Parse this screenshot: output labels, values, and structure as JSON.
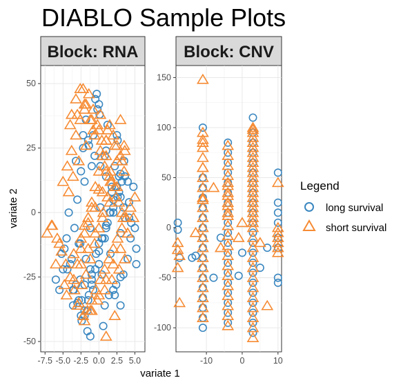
{
  "chart_data": {
    "type": "scatter",
    "title": "DIABLO Sample Plots",
    "xlabel": "variate 1",
    "ylabel": "variate 2",
    "grid": true,
    "legend": {
      "title": "Legend",
      "placement": "right",
      "entries": [
        {
          "label": "long survival",
          "shape": "circle",
          "color": "#3A87C0"
        },
        {
          "label": "short survival",
          "shape": "triangle",
          "color": "#F68B33"
        }
      ]
    },
    "panels": [
      {
        "strip": "Block: RNA",
        "xlim": [
          -8.1,
          6.4
        ],
        "ylim": [
          -54,
          57
        ],
        "xticks": [
          -7.5,
          -5.0,
          -2.5,
          0.0,
          2.5,
          5.0
        ],
        "xtick_labels": [
          "-7.5",
          "-5.0",
          "-2.5",
          "0.0",
          "2.5",
          "5.0"
        ],
        "yticks": [
          -50,
          -25,
          0,
          25,
          50
        ],
        "ytick_labels": [
          "-50",
          "-25",
          "0",
          "25",
          "50"
        ],
        "series": [
          {
            "name": "long survival",
            "color": "#3A87C0",
            "shape": "circle",
            "x": [
              -3.5,
              -3,
              -2.5,
              -2,
              -1.5,
              -1,
              -0.5,
              0,
              0.5,
              1,
              1.5,
              2,
              2.5,
              3,
              -4,
              -2.8,
              -1.2,
              0.2,
              1.8,
              2.8,
              -3.2,
              -2.2,
              -0.8,
              0.8,
              2.2,
              3.2,
              -1.8,
              -0.2,
              1.2,
              2.6,
              -3.8,
              -2.6,
              -1.4,
              0.4,
              1.6,
              3,
              3.6,
              4.2,
              4.8,
              5.2,
              -4.5,
              -4.8,
              -5,
              -5.5,
              -6,
              -3.6,
              -2.4,
              -1.6,
              0.6,
              1.4,
              2.4,
              3.4,
              4,
              -0.5,
              0,
              -1.2,
              -2,
              0.8,
              2,
              3,
              -3,
              -2,
              -1,
              1,
              2.5,
              3.5,
              -4.2,
              -3.4,
              -2.6,
              -1.8,
              -1,
              0,
              1,
              2,
              3,
              4,
              -2.2,
              -1.4,
              -0.6,
              0.2,
              1,
              1.8,
              2.6,
              3.4,
              4.2,
              5,
              -3.2,
              -2.4,
              -1.6,
              -0.8,
              0,
              0.8,
              1.6,
              2.4,
              -0.3,
              0.1,
              -1.5,
              -2.5,
              3,
              4.5,
              -5.2,
              -4.4,
              -3.6,
              -2.8,
              -2,
              -1.2,
              -0.4,
              0.4,
              1.2,
              2,
              2.8,
              3.6,
              4.4,
              5.2,
              -1,
              2.2
            ],
            "y": [
              -30,
              -35,
              -40,
              -38,
              -34,
              -28,
              -22,
              -15,
              -10,
              -5,
              0,
              5,
              10,
              15,
              -20,
              -12,
              -6,
              2,
              8,
              14,
              20,
              25,
              30,
              22,
              18,
              12,
              36,
              40,
              34,
              28,
              -18,
              -26,
              -32,
              -24,
              -16,
              -8,
              -2,
              4,
              10,
              -20,
              -10,
              -14,
              -22,
              -30,
              -26,
              -36,
              -42,
              -46,
              -44,
              -32,
              -28,
              -24,
              -18,
              44,
              42,
              -48,
              -40,
              -36,
              -30,
              -25,
              5,
              12,
              18,
              24,
              30,
              20,
              0,
              -6,
              -12,
              -18,
              -24,
              -12,
              -6,
              0,
              6,
              12,
              30,
              26,
              22,
              18,
              14,
              10,
              6,
              2,
              -2,
              -6,
              -28,
              -34,
              -38,
              -30,
              -20,
              -10,
              0,
              10,
              46,
              38,
              28,
              16,
              -36,
              -4,
              -16,
              -22,
              -30,
              -34,
              -28,
              -22,
              -16,
              -10,
              -4,
              2,
              8,
              14,
              -10,
              -14,
              -26,
              -32
            ]
          },
          {
            "name": "short survival",
            "color": "#F68B33",
            "shape": "triangle",
            "x": [
              -6.5,
              -5.8,
              -5.2,
              -4.6,
              -4,
              -3.4,
              -2.8,
              -2.2,
              -1.6,
              -1,
              -0.4,
              0.2,
              0.8,
              1.4,
              2,
              2.6,
              3.2,
              3.8,
              4.4,
              5,
              -5,
              -4.4,
              -3.8,
              -3.2,
              -2.6,
              -2,
              -1.4,
              -0.8,
              -0.2,
              0.4,
              1,
              1.6,
              2.2,
              2.8,
              3.4,
              4,
              -3,
              -2.5,
              -2,
              -1.5,
              -1,
              -0.5,
              0,
              0.5,
              1,
              1.5,
              2,
              2.5,
              3,
              -3.8,
              -3.2,
              -2.6,
              -1.8,
              -1.2,
              -0.6,
              0.2,
              0.8,
              1.6,
              2.4,
              3.2,
              -2.4,
              -1.8,
              -1.2,
              -0.6,
              0,
              0.6,
              1.2,
              1.8,
              -4.2,
              -3.6,
              -5.5,
              -6,
              -4.8,
              -3,
              -2,
              -1,
              0,
              1,
              2,
              3,
              4,
              4.8,
              -2.8,
              -1.8,
              -0.8,
              0.2,
              1.2,
              2.2,
              3.2,
              -2,
              -1,
              0,
              1,
              -3.5,
              -2.5,
              -1.5,
              -0.5,
              0.5,
              1.5,
              2.5,
              3.5,
              -4.5,
              -3.5,
              -2.5,
              -1.5,
              -0.5,
              0.5,
              1.5,
              2.5,
              3.5,
              -1.2,
              -0.2,
              0.8,
              1.8,
              2.8,
              3.6,
              -4,
              -3,
              -2,
              -1,
              0,
              1,
              -7.2,
              -6.6,
              -2.2,
              3,
              3.6,
              2.2,
              1
            ],
            "y": [
              -5,
              -10,
              -15,
              -20,
              -25,
              -30,
              -35,
              -40,
              -38,
              -34,
              -30,
              -26,
              -22,
              -18,
              -14,
              -10,
              -6,
              -2,
              2,
              6,
              12,
              18,
              24,
              30,
              36,
              42,
              46,
              40,
              34,
              28,
              22,
              16,
              10,
              4,
              -2,
              -8,
              -20,
              -14,
              -8,
              -2,
              4,
              10,
              16,
              22,
              28,
              34,
              30,
              26,
              22,
              38,
              44,
              48,
              42,
              36,
              30,
              24,
              18,
              12,
              6,
              0,
              -28,
              -24,
              -18,
              -12,
              -6,
              0,
              6,
              12,
              8,
              14,
              -12,
              -20,
              -28,
              -36,
              -42,
              -38,
              -32,
              -26,
              -20,
              -14,
              -8,
              -2,
              20,
              26,
              32,
              38,
              32,
              26,
              20,
              -5,
              2,
              9,
              16,
              -16,
              -10,
              -4,
              2,
              8,
              14,
              20,
              26,
              -32,
              -26,
              -20,
              -14,
              -8,
              -2,
              4,
              10,
              16,
              -38,
              -34,
              -30,
              -26,
              -22,
              -18,
              34,
              38,
              40,
              36,
              32,
              28,
              -8,
              -5,
              48,
              36,
              24,
              -40,
              -48
            ]
          }
        ]
      },
      {
        "strip": "Block: CNV",
        "xlim": [
          -18.5,
          11
        ],
        "ylim": [
          -124,
          162
        ],
        "xticks": [
          -10,
          0,
          10
        ],
        "xtick_labels": [
          "-10",
          "0",
          "10"
        ],
        "yticks": [
          -100,
          -50,
          0,
          50,
          100,
          150
        ],
        "ytick_labels": [
          "-100",
          "-50",
          "0",
          "50",
          "100",
          "150"
        ],
        "series": [
          {
            "name": "long survival",
            "color": "#3A87C0",
            "shape": "circle",
            "x": [
              -18,
              -18,
              -17.5,
              -11,
              -11,
              -11,
              -11,
              -11,
              -11,
              -11,
              -11,
              -11,
              -11,
              -11,
              -11,
              -11,
              -11,
              -11,
              -11,
              -11,
              -4,
              -4,
              -4,
              -4,
              -4,
              -4,
              -4,
              -4,
              -4,
              -4,
              -4,
              -4,
              -4,
              -4,
              -4,
              -4,
              -4,
              -4,
              -4,
              3,
              3,
              3,
              3,
              3,
              3,
              3,
              3,
              3,
              3,
              3,
              3,
              3,
              3,
              3,
              3,
              3,
              3,
              3,
              3,
              3,
              3,
              10,
              10,
              10,
              10,
              10,
              10,
              10,
              10,
              -14,
              -13,
              0,
              -8,
              -6,
              -1,
              5,
              7
            ],
            "y": [
              -2,
              5,
              -30,
              -100,
              -90,
              -80,
              -70,
              -60,
              -50,
              -40,
              -30,
              -20,
              -10,
              0,
              10,
              20,
              30,
              40,
              50,
              100,
              -95,
              -85,
              -75,
              -65,
              -55,
              -45,
              -35,
              -25,
              -15,
              -5,
              5,
              15,
              25,
              35,
              45,
              55,
              65,
              75,
              85,
              -105,
              -95,
              -85,
              -75,
              -65,
              -55,
              -45,
              -35,
              -25,
              -15,
              -5,
              5,
              15,
              25,
              35,
              45,
              55,
              65,
              75,
              85,
              95,
              110,
              55,
              25,
              15,
              5,
              -10,
              -20,
              -50,
              -55,
              -30,
              -28,
              -25,
              -50,
              -10,
              -48,
              -40,
              -20
            ]
          },
          {
            "name": "short survival",
            "color": "#F68B33",
            "shape": "triangle",
            "x": [
              -18,
              -18,
              -18,
              -17.5,
              -17.5,
              -11,
              -11,
              -11,
              -11,
              -11,
              -11,
              -11,
              -11,
              -11,
              -11,
              -11,
              -11,
              -11,
              -11,
              -11,
              -11,
              -11,
              -11,
              -11,
              -11,
              -11,
              -11,
              -11,
              -4,
              -4,
              -4,
              -4,
              -4,
              -4,
              -4,
              -4,
              -4,
              -4,
              -4,
              -4,
              -4,
              -4,
              -4,
              -4,
              -4,
              -4,
              -4,
              -4,
              -4,
              -4,
              -4,
              3,
              3,
              3,
              3,
              3,
              3,
              3,
              3,
              3,
              3,
              3,
              3,
              3,
              3,
              3,
              3,
              3,
              3,
              3,
              3,
              3,
              3,
              3,
              3,
              3,
              3,
              3,
              3,
              3,
              3,
              3,
              3,
              3,
              10,
              10,
              10,
              10,
              10,
              10,
              10,
              -11,
              -8,
              -6,
              0,
              5,
              7,
              -13,
              -1
            ],
            "y": [
              -15,
              -22,
              -40,
              -28,
              -75,
              148,
              95,
              88,
              80,
              70,
              60,
              50,
              40,
              30,
              20,
              10,
              0,
              -10,
              -20,
              -30,
              -40,
              -50,
              -60,
              -70,
              -80,
              -90,
              28,
              60,
              82,
              72,
              62,
              52,
              42,
              32,
              22,
              12,
              2,
              -8,
              -18,
              -28,
              -38,
              -48,
              -58,
              -68,
              -78,
              -88,
              -98,
              45,
              35,
              25,
              15,
              100,
              95,
              90,
              80,
              70,
              60,
              50,
              40,
              30,
              20,
              10,
              0,
              -10,
              -20,
              -30,
              -40,
              -50,
              -60,
              -70,
              -80,
              -90,
              -100,
              -110,
              5,
              15,
              25,
              35,
              45,
              55,
              65,
              75,
              85,
              98,
              45,
              -10,
              -20,
              0,
              -5,
              -15,
              -25,
              85,
              40,
              -20,
              5,
              -15,
              -78,
              -5,
              -10
            ]
          }
        ]
      }
    ]
  }
}
